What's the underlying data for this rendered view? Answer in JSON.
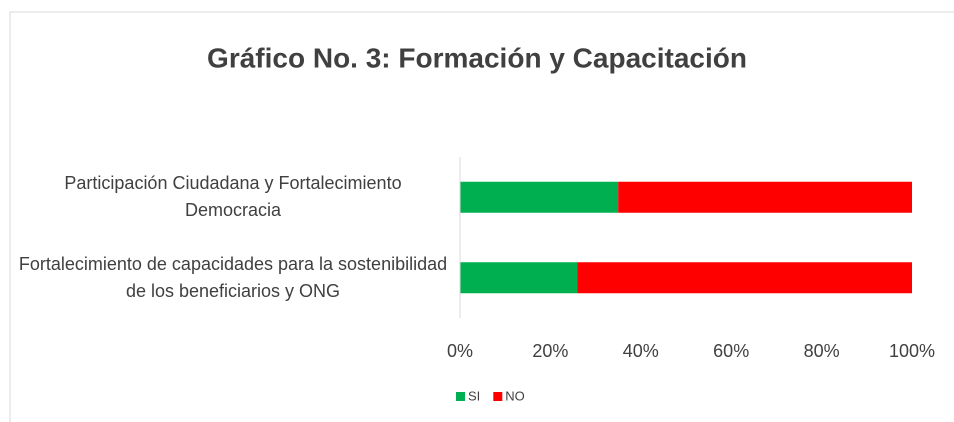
{
  "chart_data": {
    "type": "stacked_barh",
    "title": "Gráfico No. 3: Formación y Capacitación",
    "categories": [
      "Participación Ciudadana y Fortalecimiento Democracia",
      "Fortalecimiento de capacidades para la sostenibilidad de los beneficiarios y ONG"
    ],
    "series": [
      {
        "name": "SI",
        "color": "#00b050",
        "values": [
          35,
          26
        ]
      },
      {
        "name": "NO",
        "color": "#ff0000",
        "values": [
          65,
          74
        ]
      }
    ],
    "xlim": [
      0,
      100
    ],
    "xticks": [
      {
        "value": 0,
        "label": "0%"
      },
      {
        "value": 20,
        "label": "20%"
      },
      {
        "value": 40,
        "label": "40%"
      },
      {
        "value": 60,
        "label": "60%"
      },
      {
        "value": 80,
        "label": "80%"
      },
      {
        "value": 100,
        "label": "100%"
      }
    ],
    "legend": "bottom"
  }
}
